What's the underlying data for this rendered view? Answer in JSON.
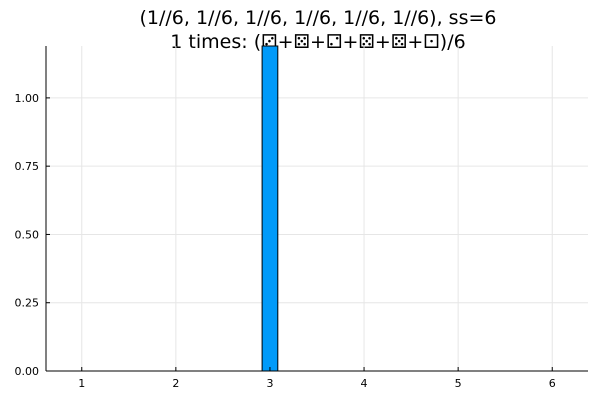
{
  "chart_data": {
    "type": "bar",
    "title_line1": "(1//6, 1//6, 1//6, 1//6, 1//6, 1//6), ss=6",
    "title_line2": "1 times: (⚂+⚄+⚁+⚄+⚄+⚀)/6",
    "xlabel": "",
    "ylabel": "",
    "xlim": [
      0.62,
      6.38
    ],
    "ylim": [
      0,
      1.19
    ],
    "x_ticks": [
      1,
      2,
      3,
      4,
      5,
      6
    ],
    "x_tick_labels": [
      "1",
      "2",
      "3",
      "4",
      "5",
      "6"
    ],
    "y_ticks": [
      0,
      0.25,
      0.5,
      0.75,
      1.0
    ],
    "y_tick_labels": [
      "0.00",
      "0.25",
      "0.50",
      "0.75",
      "1.00"
    ],
    "bars": [
      {
        "x": 3.0,
        "width": 0.167,
        "value": 1.19
      }
    ],
    "bar_color": "#009af9",
    "grid": true,
    "legend": "none"
  }
}
